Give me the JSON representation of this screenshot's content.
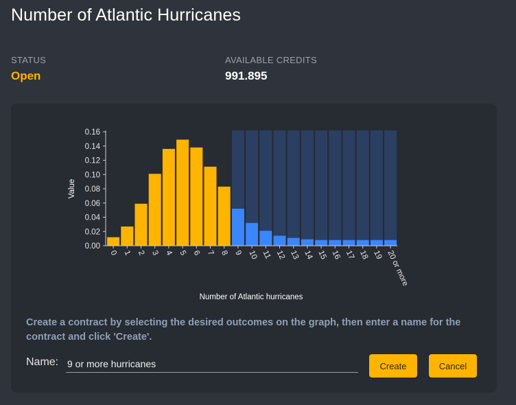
{
  "page": {
    "title": "Number of Atlantic Hurricanes",
    "status_label": "STATUS",
    "status_value": "Open",
    "credits_label": "AVAILABLE CREDITS",
    "credits_value": "991.895"
  },
  "colors": {
    "accent": "#ffb400",
    "selected_bar": "#3a86ff",
    "selection_band": "#2b3f63",
    "background": "#2f333b",
    "panel": "#272b32"
  },
  "chart_data": {
    "type": "bar",
    "categories": [
      "0",
      "1",
      "2",
      "3",
      "4",
      "5",
      "6",
      "7",
      "8",
      "9",
      "10",
      "11",
      "12",
      "13",
      "14",
      "15",
      "16",
      "17",
      "18",
      "19",
      "20 or more"
    ],
    "values": [
      0.012,
      0.027,
      0.059,
      0.101,
      0.136,
      0.149,
      0.138,
      0.111,
      0.083,
      0.052,
      0.032,
      0.021,
      0.014,
      0.011,
      0.009,
      0.008,
      0.008,
      0.008,
      0.008,
      0.008,
      0.008
    ],
    "selected": [
      false,
      false,
      false,
      false,
      false,
      false,
      false,
      false,
      false,
      true,
      true,
      true,
      true,
      true,
      true,
      true,
      true,
      true,
      true,
      true,
      true
    ],
    "xlabel": "Number of Atlantic hurricanes",
    "ylabel": "Value",
    "ylim": [
      0,
      0.16
    ],
    "yticks": [
      "0.00",
      "0.02",
      "0.04",
      "0.06",
      "0.08",
      "0.10",
      "0.12",
      "0.14",
      "0.16"
    ],
    "grid": false,
    "legend": "none"
  },
  "instructions": "Create a contract by selecting the desired outcomes on the graph, then enter a name for the contract and click 'Create'.",
  "form": {
    "name_label": "Name:",
    "name_value": "9 or more hurricanes",
    "create_label": "Create",
    "cancel_label": "Cancel"
  }
}
